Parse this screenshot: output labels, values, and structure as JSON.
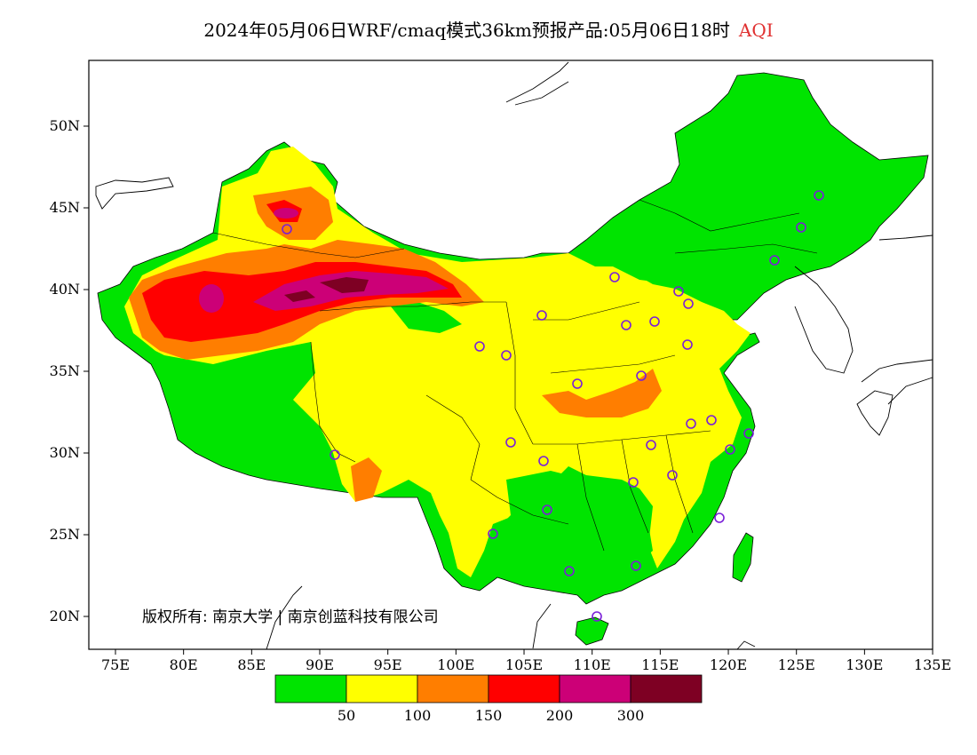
{
  "title": {
    "main": "2024年05月06日WRF/cmaq模式36km预报产品:05月06日18时",
    "variable": "AQI",
    "variable_color": "#e03030"
  },
  "axes": {
    "lon_labels": [
      "75E",
      "80E",
      "85E",
      "90E",
      "95E",
      "100E",
      "105E",
      "110E",
      "115E",
      "120E",
      "125E",
      "130E",
      "135E"
    ],
    "lat_labels": [
      "20N",
      "25N",
      "30N",
      "35N",
      "40N",
      "45N",
      "50N"
    ]
  },
  "copyright": "版权所有: 南京大学 | 南京创蓝科技有限公司",
  "legend": {
    "colors": [
      "#00e400",
      "#ffff00",
      "#ff7e00",
      "#ff0000",
      "#cc0077",
      "#7e0023"
    ],
    "labels": [
      "50",
      "100",
      "150",
      "200",
      "300"
    ]
  },
  "stations_color": "#7a1fd8"
}
